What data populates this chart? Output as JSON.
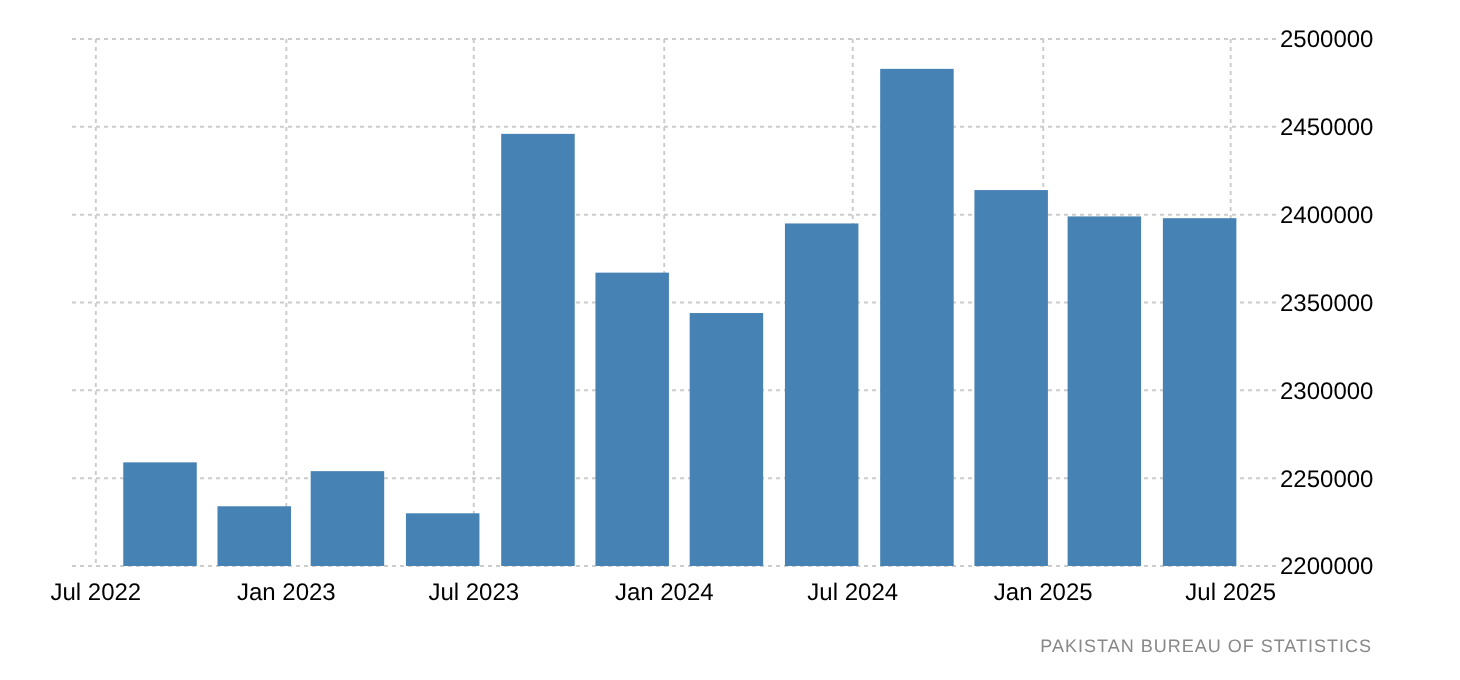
{
  "chart_data": {
    "type": "bar",
    "x": [
      "2022-09",
      "2022-12",
      "2023-03",
      "2023-06",
      "2023-09",
      "2023-12",
      "2024-03",
      "2024-06",
      "2024-09",
      "2024-12",
      "2025-03",
      "2025-06"
    ],
    "values": [
      2259000,
      2234000,
      2254000,
      2230000,
      2446000,
      2367000,
      2344000,
      2395000,
      2483000,
      2414000,
      2399000,
      2398000
    ],
    "color": "#4682b4",
    "xlim": [
      "2022-06-08",
      "2025-07-10"
    ],
    "xticks": [
      {
        "value": "2022-07",
        "label": "Jul 2022"
      },
      {
        "value": "2023-01",
        "label": "Jan 2023"
      },
      {
        "value": "2023-07",
        "label": "Jul 2023"
      },
      {
        "value": "2024-01",
        "label": "Jan 2024"
      },
      {
        "value": "2024-07",
        "label": "Jul 2024"
      },
      {
        "value": "2025-01",
        "label": "Jan 2025"
      },
      {
        "value": "2025-07",
        "label": "Jul 2025"
      }
    ],
    "ylim": [
      2200000,
      2500000
    ],
    "yticks": [
      2200000,
      2250000,
      2300000,
      2350000,
      2400000,
      2450000,
      2500000
    ],
    "grid": true,
    "annotations": [
      "PAKISTAN BUREAU OF STATISTICS"
    ]
  }
}
